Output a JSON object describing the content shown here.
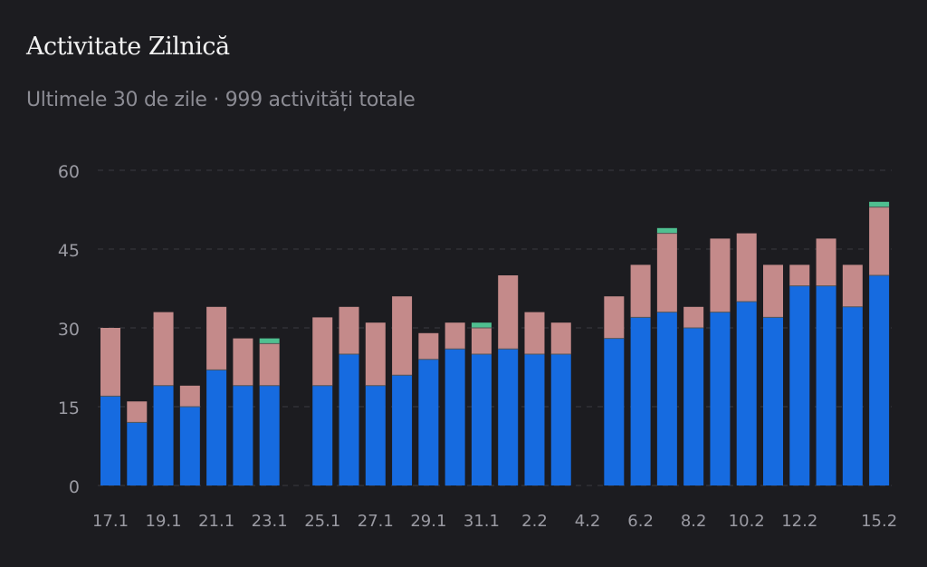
{
  "header": {
    "title": "Activitate Zilnică",
    "subtitle": "Ultimele 30 de zile · 999 activități totale"
  },
  "chart_data": {
    "type": "bar",
    "stacked": true,
    "title": "Activitate Zilnică",
    "subtitle": "Ultimele 30 de zile · 999 activități totale",
    "xlabel": "",
    "ylabel": "",
    "ylim": [
      0,
      60
    ],
    "yticks": [
      0,
      15,
      30,
      45,
      60
    ],
    "grid": true,
    "categories": [
      "17.1",
      "18.1",
      "19.1",
      "20.1",
      "21.1",
      "22.1",
      "23.1",
      "24.1",
      "25.1",
      "26.1",
      "27.1",
      "28.1",
      "29.1",
      "30.1",
      "31.1",
      "1.2",
      "2.2",
      "3.2",
      "4.2",
      "5.2",
      "6.2",
      "7.2",
      "8.2",
      "9.2",
      "10.2",
      "11.2",
      "12.2",
      "13.2",
      "14.2",
      "15.2"
    ],
    "xtick_labels": [
      "17.1",
      "19.1",
      "21.1",
      "23.1",
      "25.1",
      "27.1",
      "29.1",
      "31.1",
      "2.2",
      "4.2",
      "6.2",
      "8.2",
      "10.2",
      "12.2",
      "15.2"
    ],
    "series": [
      {
        "color": "#166be0",
        "values": [
          17,
          12,
          19,
          15,
          22,
          19,
          19,
          0,
          19,
          25,
          19,
          21,
          24,
          26,
          25,
          26,
          25,
          25,
          0,
          28,
          32,
          33,
          30,
          33,
          35,
          32,
          38,
          38,
          34,
          40
        ]
      },
      {
        "color": "#c48a8a",
        "values": [
          13,
          4,
          14,
          4,
          12,
          9,
          8,
          0,
          13,
          9,
          12,
          15,
          5,
          5,
          5,
          14,
          8,
          6,
          0,
          8,
          10,
          15,
          4,
          14,
          13,
          10,
          4,
          9,
          8,
          13
        ]
      },
      {
        "color": "#4fbf90",
        "values": [
          0,
          0,
          0,
          0,
          0,
          0,
          1,
          0,
          0,
          0,
          0,
          0,
          0,
          0,
          1,
          0,
          0,
          0,
          0,
          0,
          0,
          1,
          0,
          0,
          0,
          0,
          0,
          0,
          0,
          1
        ]
      }
    ]
  }
}
